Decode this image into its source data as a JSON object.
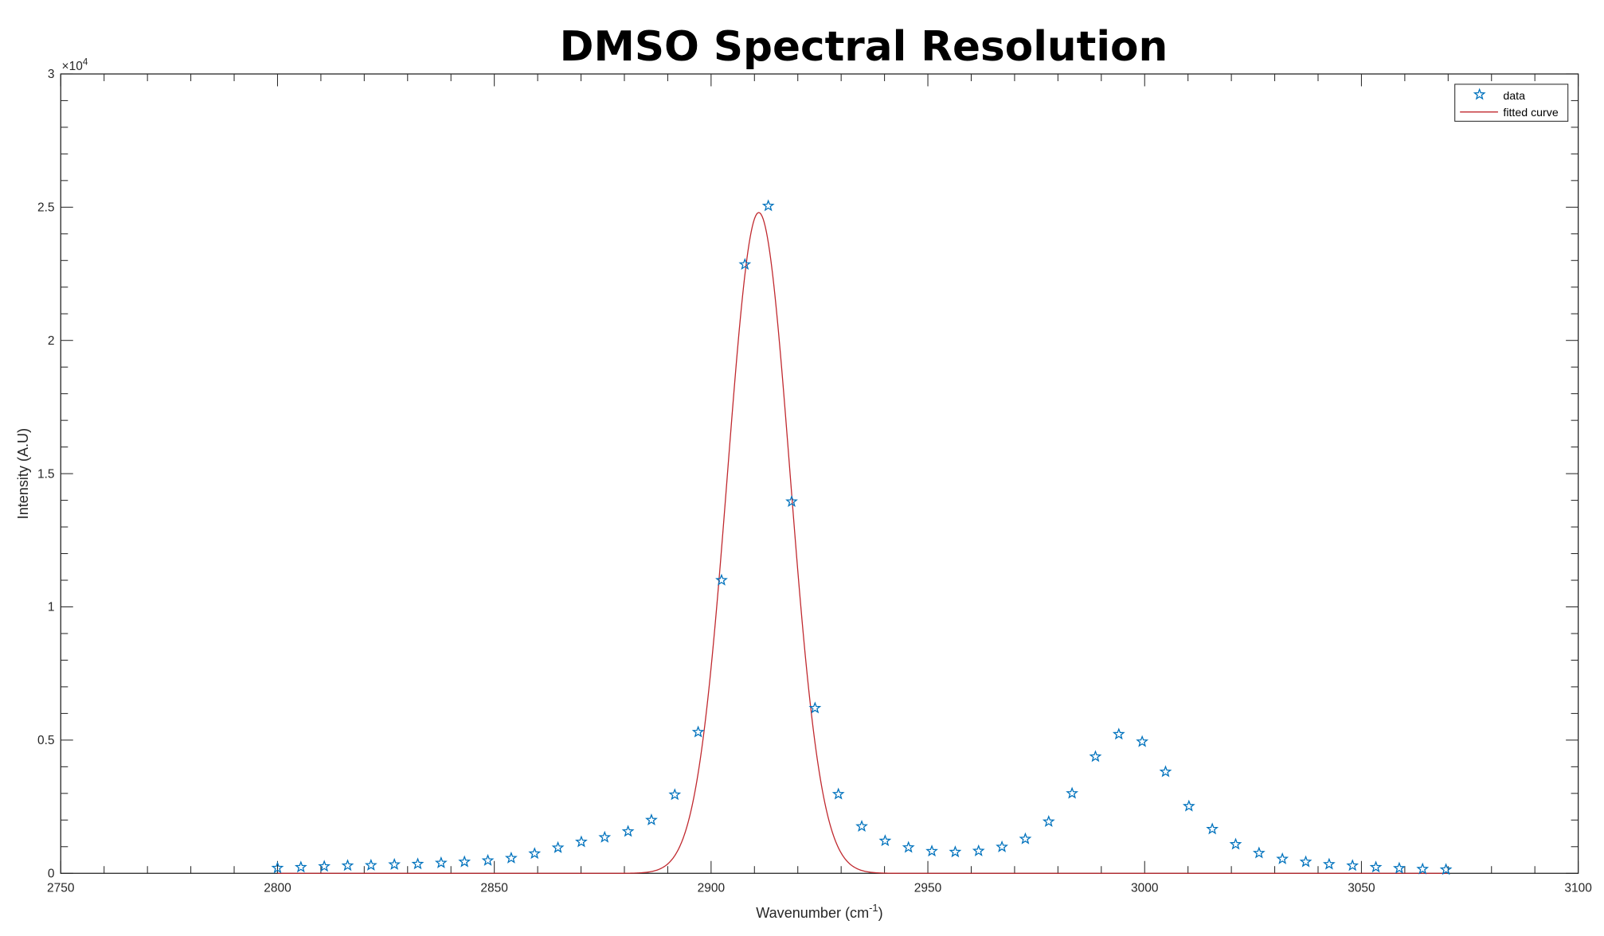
{
  "chart_data": {
    "type": "scatter",
    "title": "DMSO Spectral Resolution",
    "xlabel": "Wavenumber (cm",
    "xlabel_sup": "-1",
    "xlabel_end": ")",
    "ylabel": "Intensity (A.U)",
    "y_exponent_label": "×10",
    "y_exponent_power": "4",
    "xlim": [
      2750,
      3100
    ],
    "ylim": [
      0,
      30000
    ],
    "xticks": [
      "2750",
      "2800",
      "2850",
      "2900",
      "2950",
      "3000",
      "3050",
      "3100"
    ],
    "yticks": [
      "0",
      "0.5",
      "1",
      "1.5",
      "2",
      "2.5",
      "3"
    ],
    "grid": false,
    "legend_position": "top-right",
    "colors": {
      "data": "#0072BD",
      "fit": "#C0282E",
      "axes": "#262626"
    },
    "series": [
      {
        "name": "data",
        "marker": "star",
        "x_start": 2800,
        "x_step": 5.39,
        "y": [
          200,
          230,
          260,
          290,
          300,
          330,
          350,
          390,
          430,
          480,
          570,
          740,
          960,
          1180,
          1350,
          1570,
          2000,
          2950,
          5300,
          11000,
          22850,
          25050,
          13950,
          6200,
          2970,
          1760,
          1220,
          970,
          830,
          800,
          840,
          990,
          1290,
          1940,
          3000,
          4380,
          5220,
          4940,
          3810,
          2520,
          1660,
          1090,
          760,
          540,
          430,
          340,
          290,
          230,
          190,
          160,
          140
        ]
      },
      {
        "name": "fitted curve",
        "type": "line",
        "model": "gaussian",
        "amplitude": 24800,
        "center": 2911,
        "sigma": 7.2,
        "x_range": [
          2800,
          3070
        ]
      }
    ]
  }
}
